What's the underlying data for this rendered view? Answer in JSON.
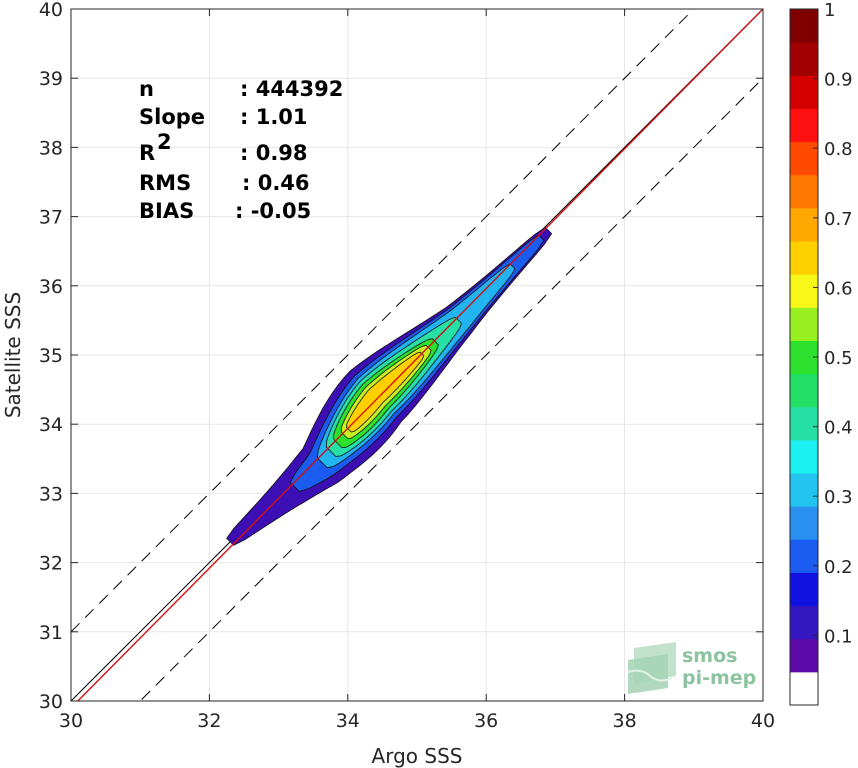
{
  "chart_data": {
    "type": "filled-contour density scatter comparison",
    "xlabel": "Argo SSS",
    "ylabel": "Satellite SSS",
    "xlim": [
      30,
      40
    ],
    "ylim": [
      30,
      40
    ],
    "xticks": [
      "30",
      "32",
      "34",
      "36",
      "38",
      "40"
    ],
    "yticks": [
      "30",
      "31",
      "32",
      "33",
      "34",
      "35",
      "36",
      "37",
      "38",
      "39",
      "40"
    ],
    "grid": true,
    "stats": [
      {
        "label": "n",
        "value": ": 444392"
      },
      {
        "label": "Slope",
        "value": ": 1.01"
      },
      {
        "label": "R",
        "sup": "2",
        "value": ": 0.98"
      },
      {
        "label": "RMS",
        "value": ": 0.46"
      },
      {
        "label": "BIAS",
        "value": ": -0.05"
      }
    ],
    "fit_line": {
      "slope": 1.01,
      "bias": -0.05,
      "color": "#d01010"
    },
    "reference_lines": {
      "identity": true,
      "offset_dashed": 1.0
    },
    "density_ridge": [
      {
        "x": 32.3,
        "y": 32.3
      },
      {
        "x": 33.6,
        "y": 33.4
      },
      {
        "x": 34.4,
        "y": 34.4
      },
      {
        "x": 35.6,
        "y": 35.5
      },
      {
        "x": 36.9,
        "y": 36.8
      }
    ],
    "density_levels": [
      {
        "level": 0.05,
        "color": "#3b0fb4"
      },
      {
        "level": 0.2,
        "color": "#1a5cf0"
      },
      {
        "level": 0.3,
        "color": "#22b4f0"
      },
      {
        "level": 0.4,
        "color": "#27e0a6"
      },
      {
        "level": 0.5,
        "color": "#2ee02e"
      },
      {
        "level": 0.6,
        "color": "#c8f020"
      },
      {
        "level": 0.7,
        "color": "#ffd000"
      }
    ],
    "colorbar": {
      "range": [
        0,
        1
      ],
      "ticks": [
        "0.1",
        "0.2",
        "0.3",
        "0.4",
        "0.5",
        "0.6",
        "0.7",
        "0.8",
        "0.9",
        "1"
      ],
      "colors": [
        "#ffffff",
        "#5c0aa8",
        "#3318c0",
        "#1212e0",
        "#1a5cf0",
        "#2a90f0",
        "#22c4f0",
        "#1cf0f0",
        "#27e0a6",
        "#22e066",
        "#2ee02e",
        "#98f020",
        "#f8f818",
        "#ffd000",
        "#ffa800",
        "#ff7a00",
        "#ff4a00",
        "#ff1010",
        "#d40000",
        "#a00000",
        "#800000"
      ]
    },
    "logo": {
      "line1": "smos",
      "line2": "pi-mep",
      "color": "#8cc4a0"
    }
  }
}
